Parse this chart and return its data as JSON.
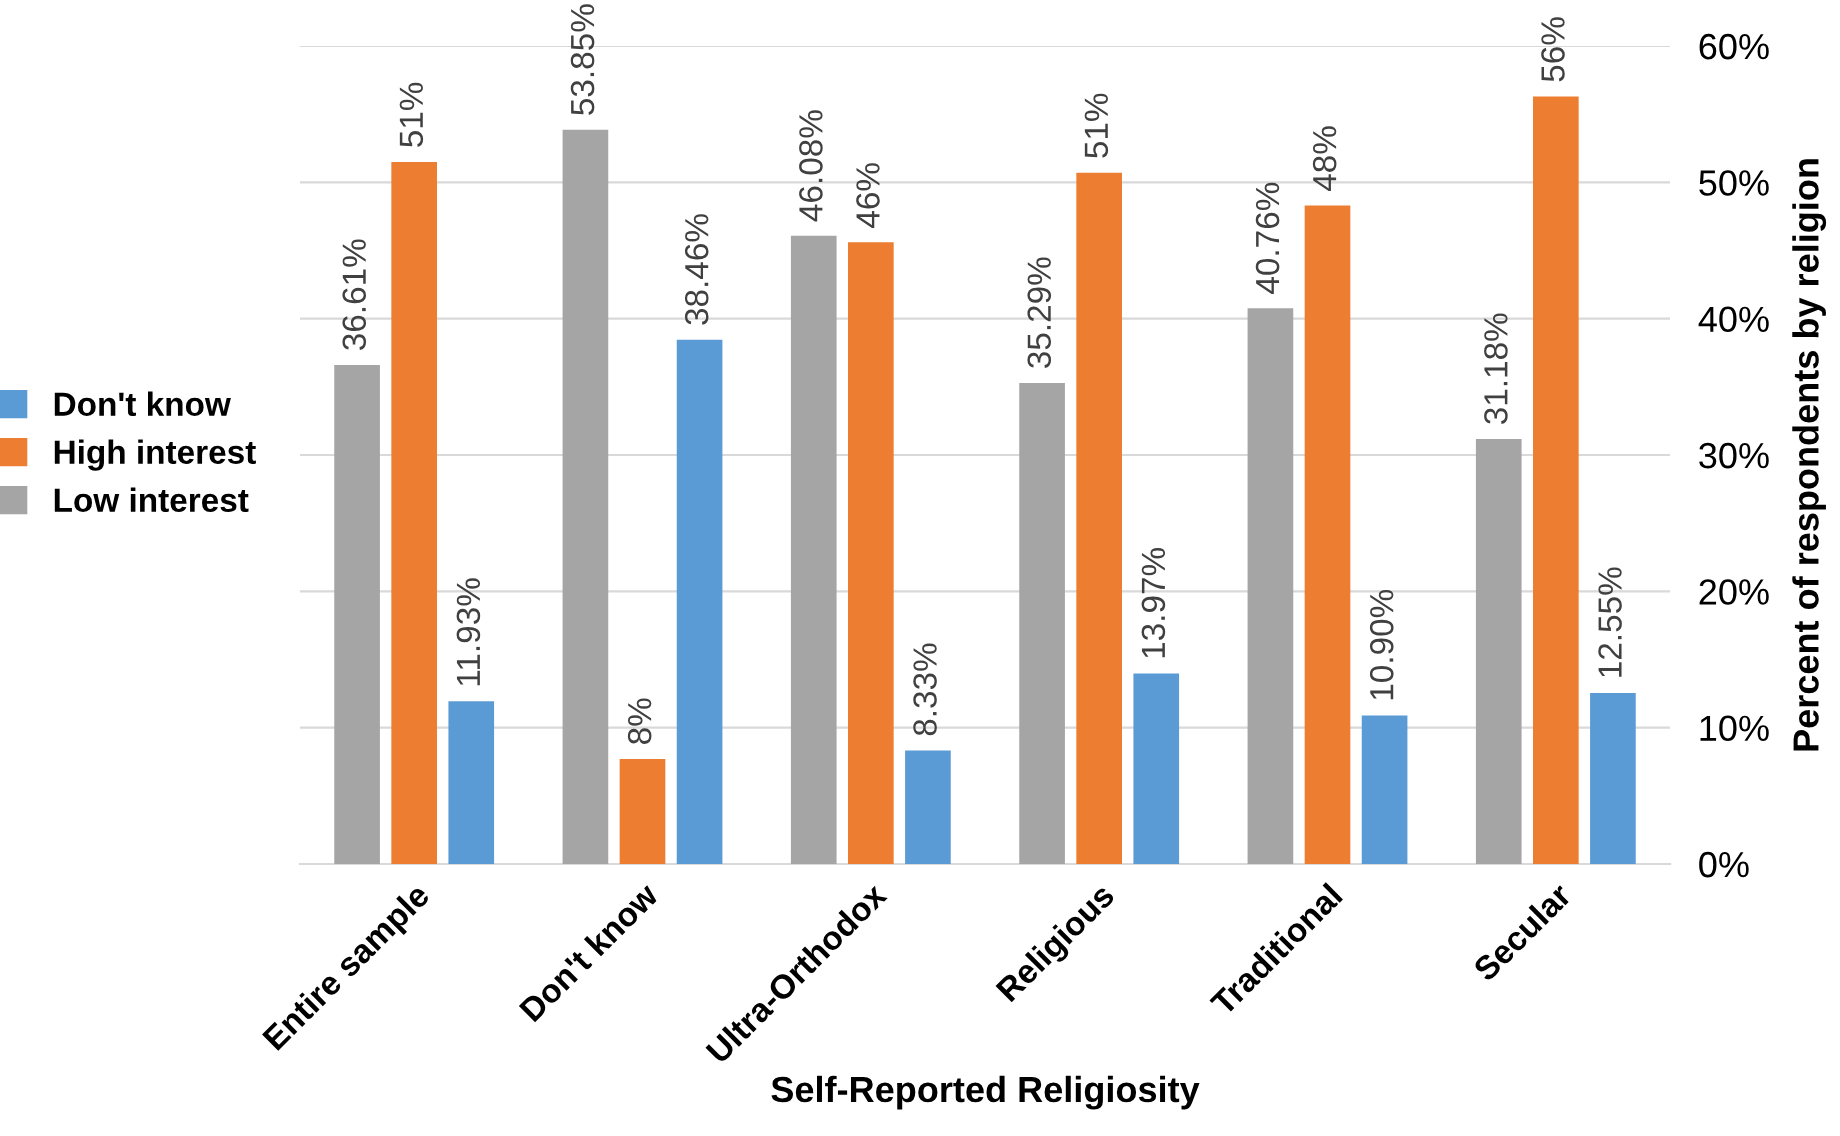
{
  "chart_data": {
    "type": "bar",
    "xlabel": "Self-Reported Religiosity",
    "ylabel": "Percent of respondents by religion",
    "categories": [
      "Entire sample",
      "Don't know",
      "Ultra-Orthodox",
      "Religious",
      "Traditional",
      "Secular"
    ],
    "series": [
      {
        "name": "Low interest",
        "color": "#a5a5a5",
        "values": [
          36.61,
          53.85,
          46.08,
          35.29,
          40.76,
          31.18
        ],
        "value_labels": [
          "36.61%",
          "53.85%",
          "46.08%",
          "35.29%",
          "40.76%",
          "31.18%"
        ]
      },
      {
        "name": "High interest",
        "color": "#ed7d31",
        "values": [
          51.5,
          7.7,
          45.6,
          50.7,
          48.3,
          56.3
        ],
        "value_labels": [
          "51%",
          "8%",
          "46%",
          "51%",
          "48%",
          "56%"
        ]
      },
      {
        "name": "Don't know",
        "color": "#5b9bd5",
        "values": [
          11.93,
          38.46,
          8.33,
          13.97,
          10.9,
          12.55
        ],
        "value_labels": [
          "11.93%",
          "38.46%",
          "8.33%",
          "13.97%",
          "10.90%",
          "12.55%"
        ]
      }
    ],
    "ylim": [
      0,
      60
    ],
    "yticks": [
      {
        "value": 0,
        "label": "0%"
      },
      {
        "value": 10,
        "label": "10%"
      },
      {
        "value": 20,
        "label": "20%"
      },
      {
        "value": 30,
        "label": "30%"
      },
      {
        "value": 40,
        "label": "40%"
      },
      {
        "value": 50,
        "label": "50%"
      },
      {
        "value": 60,
        "label": "60%"
      }
    ],
    "grid": "y",
    "legend": "left"
  }
}
